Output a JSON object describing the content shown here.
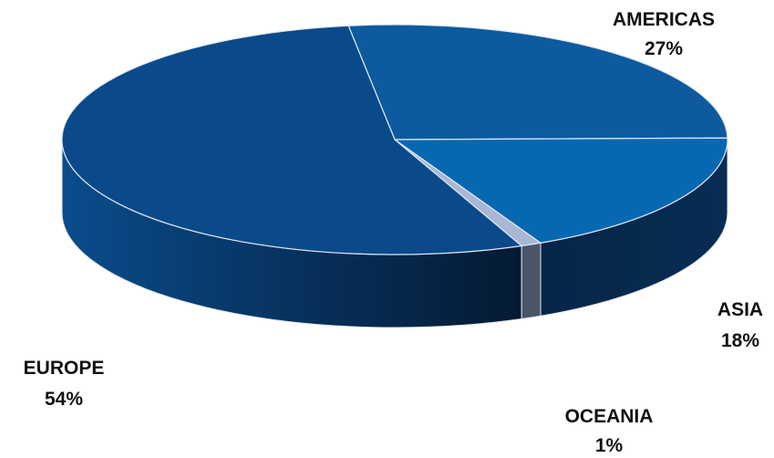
{
  "chart_data": {
    "type": "pie",
    "categories": [
      "AMERICAS",
      "ASIA",
      "OCEANIA",
      "EUROPE"
    ],
    "values": [
      27,
      18,
      1,
      54
    ],
    "value_labels": [
      "27%",
      "18%",
      "1%",
      "54%"
    ],
    "colors": {
      "AMERICAS": "#0D5A9E",
      "ASIA": "#0768B2",
      "OCEANIA": "#A9B6D4",
      "EUROPE": "#0A4A8A"
    },
    "style": "3d",
    "legend": "none",
    "data_labels": "outside"
  }
}
